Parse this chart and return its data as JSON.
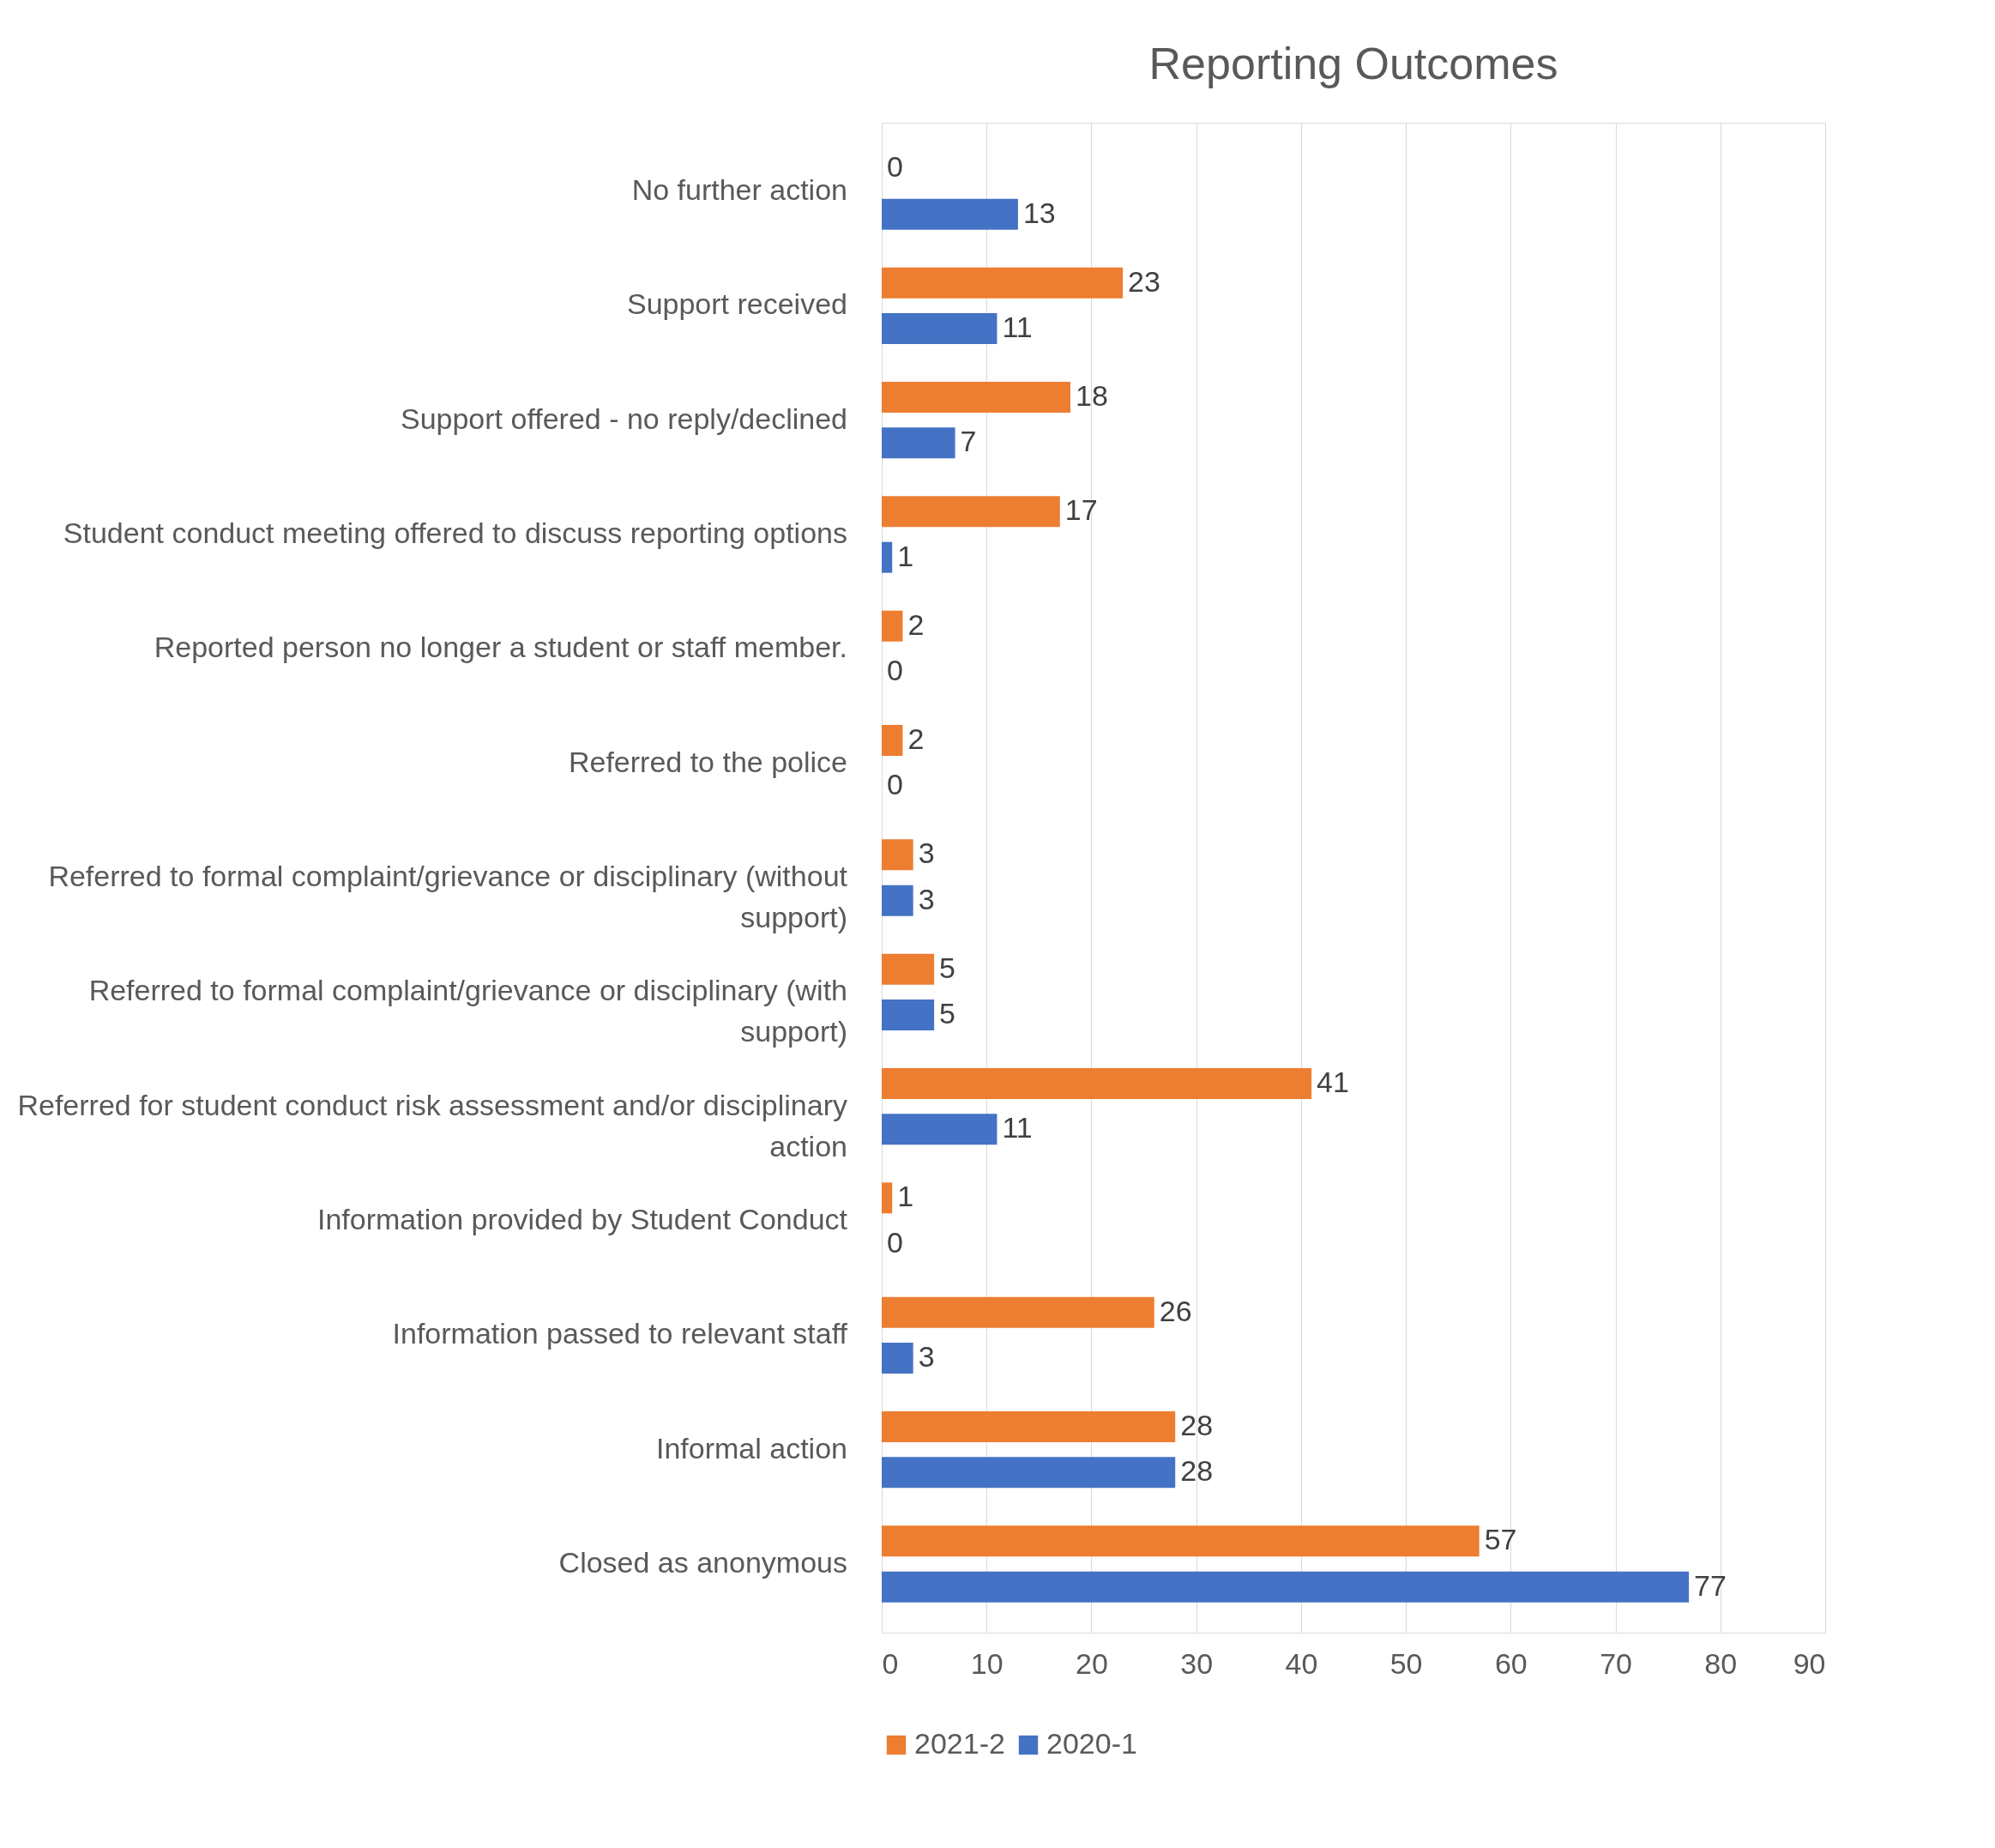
{
  "chart_data": {
    "type": "bar",
    "orientation": "horizontal",
    "title": "Reporting Outcomes",
    "categories": [
      "No further action",
      "Support received",
      "Support offered - no reply/declined",
      "Student conduct meeting offered to discuss reporting options",
      "Reported person no longer a student or staff member.",
      "Referred to the police",
      "Referred to formal complaint/grievance or disciplinary (without support)",
      "Referred to formal complaint/grievance or disciplinary (with support)",
      "Referred for student conduct risk assessment and/or disciplinary action",
      "Information provided by Student Conduct",
      "Information passed to relevant staff",
      "Informal action",
      "Closed as anonymous"
    ],
    "series": [
      {
        "name": "2021-2",
        "color": "#ed7d31",
        "values": [
          0,
          23,
          18,
          17,
          2,
          2,
          3,
          5,
          41,
          1,
          26,
          28,
          57
        ]
      },
      {
        "name": "2020-1",
        "color": "#4472c4",
        "values": [
          13,
          11,
          7,
          1,
          0,
          0,
          3,
          5,
          11,
          0,
          3,
          28,
          77
        ]
      }
    ],
    "xlim": [
      0,
      90
    ],
    "xticks": [
      0,
      10,
      20,
      30,
      40,
      50,
      60,
      70,
      80,
      90
    ],
    "grid": "x",
    "legend": "bottom",
    "data_labels": true
  }
}
